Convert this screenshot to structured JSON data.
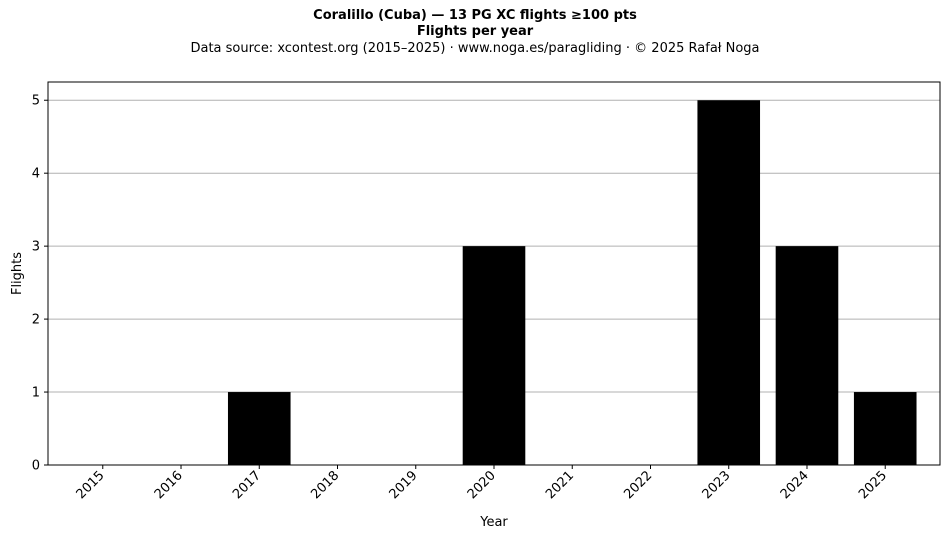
{
  "chart_data": {
    "type": "bar",
    "title": "Coralillo (Cuba)  —  13 PG XC flights ≥100 pts",
    "subtitle": "Flights per year",
    "source": "Data source: xcontest.org (2015–2025)  ·  www.noga.es/paragliding  ·  © 2025 Rafał Noga",
    "xlabel": "Year",
    "ylabel": "Flights",
    "categories": [
      "2015",
      "2016",
      "2017",
      "2018",
      "2019",
      "2020",
      "2021",
      "2022",
      "2023",
      "2024",
      "2025"
    ],
    "values": [
      0,
      0,
      1,
      0,
      0,
      3,
      0,
      0,
      5,
      3,
      1
    ],
    "yticks": [
      0,
      1,
      2,
      3,
      4,
      5
    ],
    "ylim": [
      0,
      5.25
    ],
    "grid": "y",
    "bar_color": "#000000",
    "grid_color": "#b0b0b0"
  }
}
